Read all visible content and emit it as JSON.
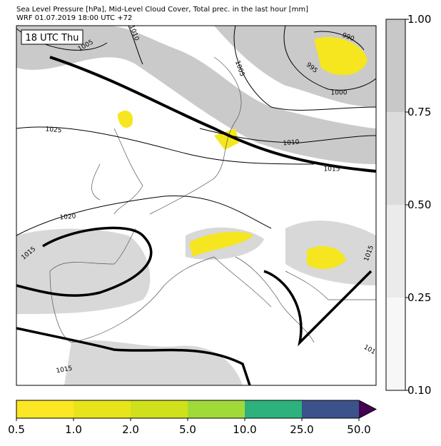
{
  "header": {
    "line1": "Sea Level Pressure [hPa], Mid-Level Cloud Cover, Total prec. in the last hour [mm]",
    "line2": "WRF 01.07.2019 18:00 UTC +72"
  },
  "map": {
    "time_label": "18 UTC Thu",
    "contour_labels": [
      "1005",
      "1010",
      "1005",
      "990",
      "995",
      "1000",
      "1025",
      "1010",
      "1015",
      "1020",
      "1015",
      "1015",
      "1015",
      "101"
    ]
  },
  "cloud_colorbar": {
    "ticks": [
      "0.10",
      "0.25",
      "0.50",
      "0.75",
      "1.00"
    ],
    "colors": [
      "#f7f7f7",
      "#ebebeb",
      "#dcdcdc",
      "#c8c8c8"
    ]
  },
  "precip_colorbar": {
    "ticks": [
      "0.5",
      "1.0",
      "2.0",
      "5.0",
      "10.0",
      "25.0",
      "50.0"
    ],
    "colors": [
      "#fbe723",
      "#e8e41b",
      "#d0e11c",
      "#a0da39",
      "#2db27d",
      "#3b528b"
    ],
    "extend_color": "#440154"
  }
}
